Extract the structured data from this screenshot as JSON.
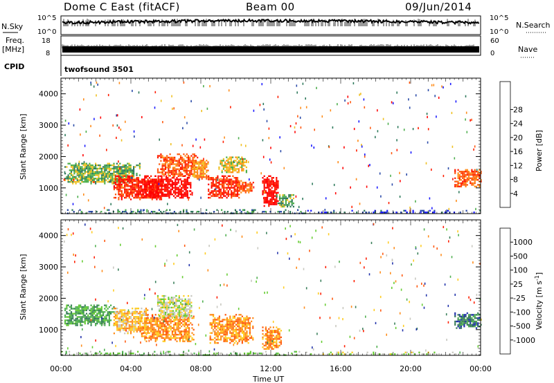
{
  "header": {
    "title": "Dome C East (fitACF)",
    "beam": "Beam 00",
    "date": "09/Jun/2014"
  },
  "panels": {
    "nsky_label": "N.Sky",
    "nsearch_label": "N.Search",
    "nsky_ticks": [
      "10^5",
      "10^0"
    ],
    "nsearch_ticks": [
      "10^5",
      "10^0"
    ],
    "freq_label": "Freq.",
    "freq_unit": "[MHz]",
    "freq_ticks": [
      "18",
      "8"
    ],
    "nave_label": "Nave",
    "nave_ticks": [
      "60",
      "0"
    ],
    "cpid_label": "CPID",
    "cpid_text": "twofsound 3501"
  },
  "chart_data": [
    {
      "type": "heatmap",
      "name": "power",
      "ylabel": "Slant Range [km]",
      "xlabel": "Time UT",
      "xlim": [
        0,
        24
      ],
      "ylim": [
        180,
        4500
      ],
      "x_ticks": [
        "00:00",
        "04:00",
        "08:00",
        "12:00",
        "16:00",
        "20:00",
        "00:00"
      ],
      "y_ticks": [
        1000,
        2000,
        3000,
        4000
      ],
      "colorbar": {
        "label": "Power [dB]",
        "ticks": [
          "4",
          "8",
          "12",
          "16",
          "20",
          "24",
          "28"
        ],
        "colors": [
          "#1a1aff",
          "#2a4aa8",
          "#2f7a5c",
          "#4cae4c",
          "#f0c020",
          "#ff8c1a",
          "#ff5a10",
          "#ff1e00",
          "#ff0000"
        ]
      },
      "echo_regions": [
        {
          "t0": 0.2,
          "t1": 4.5,
          "r0": 1150,
          "r1": 1800,
          "level": 3
        },
        {
          "t0": 3.0,
          "t1": 5.8,
          "r0": 650,
          "r1": 1400,
          "level": 7
        },
        {
          "t0": 4.5,
          "t1": 7.5,
          "r0": 700,
          "r1": 1400,
          "level": 8
        },
        {
          "t0": 5.5,
          "t1": 7.8,
          "r0": 1400,
          "r1": 2100,
          "level": 6
        },
        {
          "t0": 7.5,
          "t1": 8.4,
          "r0": 1300,
          "r1": 1900,
          "level": 5
        },
        {
          "t0": 8.4,
          "t1": 10.2,
          "r0": 700,
          "r1": 1400,
          "level": 7
        },
        {
          "t0": 9.0,
          "t1": 10.6,
          "r0": 1500,
          "r1": 2000,
          "level": 4
        },
        {
          "t0": 10.0,
          "t1": 11.0,
          "r0": 850,
          "r1": 1250,
          "level": 6
        },
        {
          "t0": 11.5,
          "t1": 12.4,
          "r0": 400,
          "r1": 1400,
          "level": 8
        },
        {
          "t0": 12.3,
          "t1": 13.3,
          "r0": 400,
          "r1": 800,
          "level": 3
        },
        {
          "t0": 22.5,
          "t1": 24.0,
          "r0": 1050,
          "r1": 1600,
          "level": 6
        },
        {
          "t0": 0.0,
          "t1": 14.0,
          "r0": 200,
          "r1": 320,
          "level": 2
        },
        {
          "t0": 14.0,
          "t1": 24.0,
          "r0": 200,
          "r1": 300,
          "level": 1
        }
      ]
    },
    {
      "type": "heatmap",
      "name": "velocity",
      "ylabel": "Slant Range [km]",
      "xlabel": "Time UT",
      "xlim": [
        0,
        24
      ],
      "ylim": [
        180,
        4500
      ],
      "x_ticks": [
        "00:00",
        "04:00",
        "08:00",
        "12:00",
        "16:00",
        "20:00",
        "00:00"
      ],
      "y_ticks": [
        1000,
        2000,
        3000,
        4000
      ],
      "colorbar": {
        "label": "Velocity [m s",
        "label_sup": "-1",
        "label_end": "]",
        "ticks": [
          "1000",
          "500",
          "100",
          "25",
          "-25",
          "-100",
          "-500",
          "-1000"
        ],
        "colors": [
          "#2233aa",
          "#3a7f5a",
          "#50b050",
          "#66cc33",
          "#c8c8c0",
          "#ffcc22",
          "#ff8c1a",
          "#ff5a10",
          "#ff1e00"
        ]
      },
      "echo_regions": [
        {
          "t0": 0.2,
          "t1": 3.0,
          "r0": 1150,
          "r1": 1800,
          "level": 2
        },
        {
          "t0": 3.0,
          "t1": 5.0,
          "r0": 900,
          "r1": 1700,
          "level": 5
        },
        {
          "t0": 4.5,
          "t1": 7.6,
          "r0": 650,
          "r1": 1500,
          "level": 6
        },
        {
          "t0": 5.5,
          "t1": 7.5,
          "r0": 1400,
          "r1": 2100,
          "level": 4
        },
        {
          "t0": 8.5,
          "t1": 11.0,
          "r0": 600,
          "r1": 1500,
          "level": 6
        },
        {
          "t0": 11.5,
          "t1": 12.6,
          "r0": 400,
          "r1": 1100,
          "level": 6
        },
        {
          "t0": 22.5,
          "t1": 24.0,
          "r0": 1050,
          "r1": 1550,
          "level": 1
        },
        {
          "t0": 0.0,
          "t1": 14.0,
          "r0": 200,
          "r1": 320,
          "level": 3
        },
        {
          "t0": 14.0,
          "t1": 24.0,
          "r0": 200,
          "r1": 300,
          "level": 4
        }
      ]
    }
  ]
}
